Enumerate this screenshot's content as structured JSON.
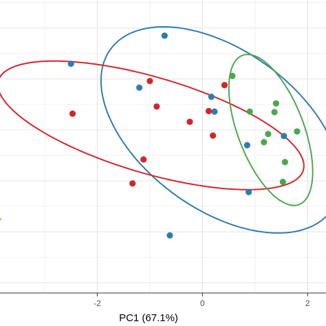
{
  "chart_data": {
    "type": "scatter",
    "title": "",
    "xlabel": "PC1 (67.1%)",
    "ylabel": "",
    "xlim": [
      -3.85,
      2.35
    ],
    "ylim": [
      -3.2,
      2.55
    ],
    "x_ticks": [
      -2,
      0,
      2
    ],
    "x_tick_labels": [
      "-2",
      "0",
      "2"
    ],
    "y_gridlines": [
      -3,
      -2.5,
      -2,
      -1.5,
      -1,
      -0.5,
      0,
      0.5,
      1,
      1.5,
      2,
      2.5
    ],
    "grid": true,
    "legend": "none",
    "colors": {
      "blue": "#2e7bb0",
      "red": "#d1262c",
      "green": "#4aa84e"
    },
    "series": [
      {
        "color": "#2e7bb0",
        "points": [
          [
            -0.72,
            1.85
          ],
          [
            -2.5,
            1.3
          ],
          [
            -1.2,
            0.83
          ],
          [
            0.17,
            0.65
          ],
          [
            0.23,
            0.36
          ],
          [
            0.85,
            -0.3
          ],
          [
            1.55,
            -0.12
          ],
          [
            0.88,
            -1.22
          ],
          [
            -0.62,
            -2.07
          ]
        ],
        "ellipse": {
          "cx": 0.35,
          "cy": 0.0,
          "rx": 2.63,
          "ry": 1.54,
          "angle_deg": -38
        }
      },
      {
        "color": "#d1262c",
        "points": [
          [
            -1.0,
            0.96
          ],
          [
            0.42,
            0.88
          ],
          [
            -2.47,
            0.32
          ],
          [
            -0.87,
            0.46
          ],
          [
            0.12,
            0.37
          ],
          [
            -0.24,
            0.16
          ],
          [
            0.2,
            -0.11
          ],
          [
            -1.12,
            -0.58
          ],
          [
            -1.33,
            -1.05
          ]
        ],
        "ellipse": {
          "cx": -0.98,
          "cy": 0.09,
          "rx": 3.03,
          "ry": 0.94,
          "angle_deg": -17
        }
      },
      {
        "color": "#4aa84e",
        "points": [
          [
            0.57,
            1.06
          ],
          [
            0.9,
            0.36
          ],
          [
            1.4,
            0.52
          ],
          [
            1.37,
            0.35
          ],
          [
            1.25,
            -0.08
          ],
          [
            1.17,
            -0.24
          ],
          [
            1.8,
            -0.03
          ],
          [
            1.57,
            -0.63
          ],
          [
            1.53,
            -1.02
          ]
        ],
        "ellipse": {
          "cx": 1.3,
          "cy": 0.0,
          "rx": 1.56,
          "ry": 0.63,
          "angle_deg": -70
        }
      }
    ],
    "offscreen_marker": {
      "x": -3.85,
      "y": -1.75,
      "color": "#f4a582"
    }
  }
}
